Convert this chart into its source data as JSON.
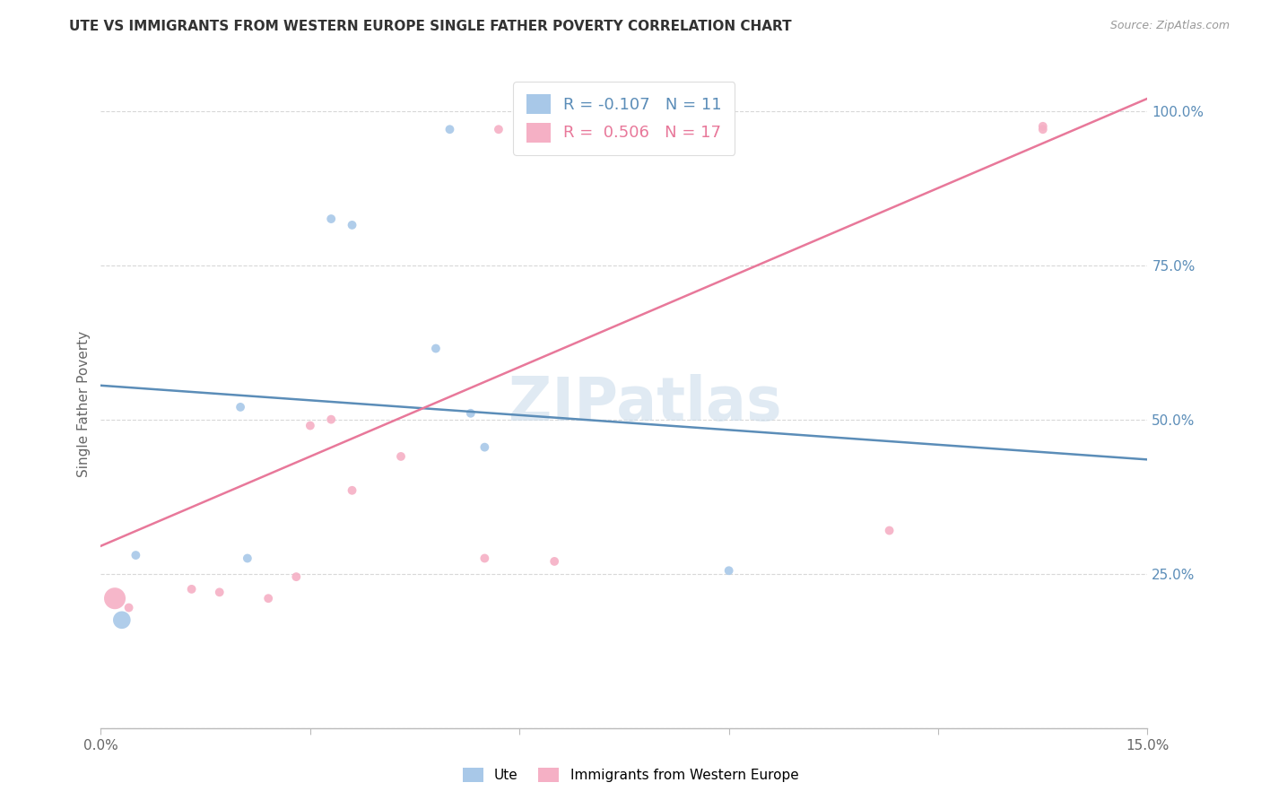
{
  "title": "UTE VS IMMIGRANTS FROM WESTERN EUROPE SINGLE FATHER POVERTY CORRELATION CHART",
  "source": "Source: ZipAtlas.com",
  "ylabel_label": "Single Father Poverty",
  "xlim": [
    0.0,
    0.15
  ],
  "ylim": [
    0.0,
    1.05
  ],
  "yticks_right": [
    0.25,
    0.5,
    0.75,
    1.0
  ],
  "yticklabels_right": [
    "25.0%",
    "50.0%",
    "75.0%",
    "100.0%"
  ],
  "blue_label": "Ute",
  "pink_label": "Immigrants from Western Europe",
  "legend_R_blue": "R = -0.107",
  "legend_N_blue": "N = 11",
  "legend_R_pink": "R =  0.506",
  "legend_N_pink": "N = 17",
  "blue_color": "#a8c8e8",
  "pink_color": "#f5b0c5",
  "blue_line_color": "#5b8db8",
  "pink_line_color": "#e8789a",
  "watermark": "ZIPatlas",
  "background_color": "#ffffff",
  "grid_color": "#d8d8d8",
  "blue_points": [
    [
      0.003,
      0.175
    ],
    [
      0.005,
      0.28
    ],
    [
      0.02,
      0.52
    ],
    [
      0.021,
      0.275
    ],
    [
      0.033,
      0.825
    ],
    [
      0.036,
      0.815
    ],
    [
      0.048,
      0.615
    ],
    [
      0.05,
      0.97
    ],
    [
      0.053,
      0.51
    ],
    [
      0.055,
      0.455
    ],
    [
      0.09,
      0.255
    ]
  ],
  "blue_sizes": [
    200,
    50,
    50,
    50,
    50,
    50,
    50,
    50,
    50,
    50,
    50
  ],
  "pink_points": [
    [
      0.002,
      0.21
    ],
    [
      0.004,
      0.195
    ],
    [
      0.013,
      0.225
    ],
    [
      0.017,
      0.22
    ],
    [
      0.024,
      0.21
    ],
    [
      0.028,
      0.245
    ],
    [
      0.03,
      0.49
    ],
    [
      0.033,
      0.5
    ],
    [
      0.036,
      0.385
    ],
    [
      0.043,
      0.44
    ],
    [
      0.055,
      0.275
    ],
    [
      0.057,
      0.97
    ],
    [
      0.063,
      0.97
    ],
    [
      0.065,
      0.27
    ],
    [
      0.113,
      0.32
    ],
    [
      0.135,
      0.97
    ],
    [
      0.135,
      0.975
    ]
  ],
  "pink_sizes": [
    300,
    50,
    50,
    50,
    50,
    50,
    50,
    50,
    50,
    50,
    50,
    50,
    50,
    50,
    50,
    50,
    50
  ],
  "blue_line_x": [
    0.0,
    0.15
  ],
  "blue_line_y": [
    0.555,
    0.435
  ],
  "pink_line_x": [
    0.0,
    0.15
  ],
  "pink_line_y": [
    0.295,
    1.02
  ]
}
